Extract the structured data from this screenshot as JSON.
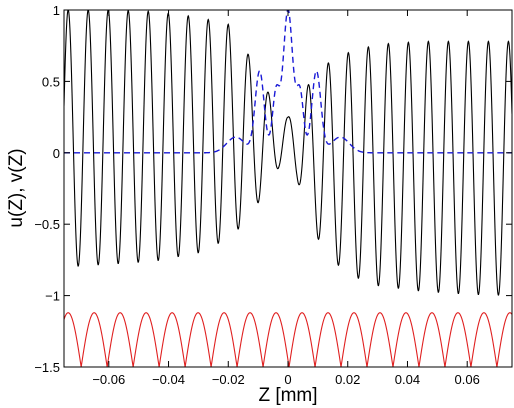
{
  "chart_data": {
    "type": "line",
    "title": "",
    "xlabel": "Z [mm]",
    "ylabel": "u(Z), v(Z)",
    "xlim": [
      -0.075,
      0.075
    ],
    "ylim": [
      -1.5,
      1
    ],
    "grid": false,
    "legend": "none",
    "x_ticks": [
      -0.06,
      -0.04,
      -0.02,
      0,
      0.02,
      0.04,
      0.06
    ],
    "x_tick_labels": [
      "−0.06",
      "−0.04",
      "−0.02",
      "0",
      "0.02",
      "0.04",
      "0.06"
    ],
    "y_ticks": [
      1,
      0.5,
      0,
      -0.5,
      -1,
      -1.5
    ],
    "y_tick_labels": [
      "1",
      "0.5",
      "0",
      "−0.5",
      "−1",
      "−1.5"
    ],
    "series": [
      {
        "color": "#000000",
        "style": "solid",
        "oscillation_period": 0.0067,
        "phase": 0.0738,
        "x": [
          -0.075,
          -0.06,
          -0.045,
          -0.03,
          -0.02,
          -0.015,
          -0.01,
          -0.006,
          -0.003,
          0,
          0.003,
          0.006,
          0.01,
          0.015,
          0.02,
          0.03,
          0.045,
          0.06,
          0.075
        ],
        "upper": [
          1.0,
          1.0,
          0.99,
          0.95,
          0.9,
          0.76,
          0.55,
          0.4,
          0.3,
          0.25,
          0.3,
          0.45,
          0.58,
          0.65,
          0.7,
          0.76,
          0.78,
          0.78,
          0.78
        ],
        "lower": [
          -0.8,
          -0.78,
          -0.76,
          -0.7,
          -0.6,
          -0.5,
          -0.35,
          -0.2,
          -0.1,
          -0.05,
          -0.18,
          -0.4,
          -0.6,
          -0.75,
          -0.85,
          -0.93,
          -0.97,
          -0.99,
          -1.0
        ]
      },
      {
        "color": "#1a1ad6",
        "style": "dashed",
        "peaks": [
          {
            "center": 0,
            "height": 1.0,
            "width": 0.0016
          },
          {
            "center": -0.0095,
            "height": 0.57,
            "width": 0.0015
          },
          {
            "center": 0.0095,
            "height": 0.57,
            "width": 0.0015
          },
          {
            "center": -0.004,
            "height": 0.42,
            "width": 0.0012
          },
          {
            "center": 0.004,
            "height": 0.42,
            "width": 0.0012
          },
          {
            "center": -0.0175,
            "height": 0.11,
            "width": 0.003
          },
          {
            "center": 0.0175,
            "height": 0.11,
            "width": 0.003
          }
        ]
      },
      {
        "color": "#e02020",
        "style": "solid",
        "type": "abs_cosine",
        "offset": -1.5,
        "amplitude": 0.38,
        "period": 0.0087,
        "phase": -0.004
      }
    ]
  }
}
